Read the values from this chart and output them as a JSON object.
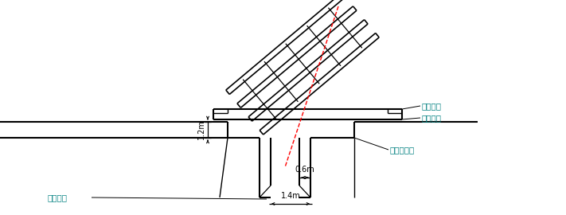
{
  "bg_color": "#ffffff",
  "line_color": "#000000",
  "red_dash_color": "#ff0000",
  "cyan_text_color": "#008080",
  "label_定位型钢": "定位型钢",
  "label_围护内边": "围护内边",
  "label_围护内边线": "围护内边线",
  "label_中心轴线": "中心轴线",
  "label_1.2m": "1.2m",
  "label_0.6m": "0.6m",
  "label_1.4m": "1.4m",
  "figsize": [
    7.11,
    2.7
  ],
  "dpi": 100
}
